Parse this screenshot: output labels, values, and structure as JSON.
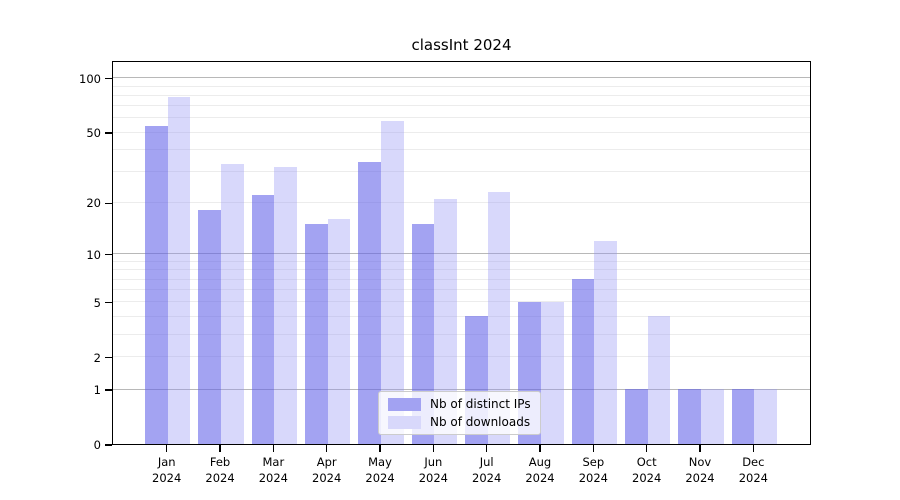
{
  "chart_data": {
    "type": "bar",
    "title": "classInt 2024",
    "categories": [
      "Jan",
      "Feb",
      "Mar",
      "Apr",
      "May",
      "Jun",
      "Jul",
      "Aug",
      "Sep",
      "Oct",
      "Nov",
      "Dec"
    ],
    "year_label": "2024",
    "series": [
      {
        "name": "Nb of distinct IPs",
        "key": "distinct-ips",
        "fill": "rgba(96,96,232,0.58)",
        "swatch_color": "#a2a2f2",
        "values": [
          54,
          18,
          22,
          15,
          34,
          15,
          4,
          5,
          7,
          1,
          1,
          1
        ]
      },
      {
        "name": "Nb of downloads",
        "key": "downloads",
        "fill": "rgba(148,148,245,0.36)",
        "swatch_color": "#d8d8fb",
        "values": [
          78,
          33,
          32,
          16,
          58,
          21,
          23,
          5,
          12,
          4,
          1,
          1
        ]
      }
    ],
    "yscale": "log1p",
    "yticks": [
      0,
      1,
      2,
      5,
      10,
      20,
      50,
      100
    ],
    "ylim": [
      0,
      125.4
    ],
    "grid": {
      "major_values": [
        1,
        10,
        100
      ],
      "minor_values": [
        2,
        3,
        4,
        5,
        6,
        7,
        8,
        9,
        20,
        30,
        40,
        50,
        60,
        70,
        80,
        90
      ],
      "major_color": "#b8b8b8",
      "minor_color": "#ececec"
    },
    "legend_position": "lower center"
  }
}
